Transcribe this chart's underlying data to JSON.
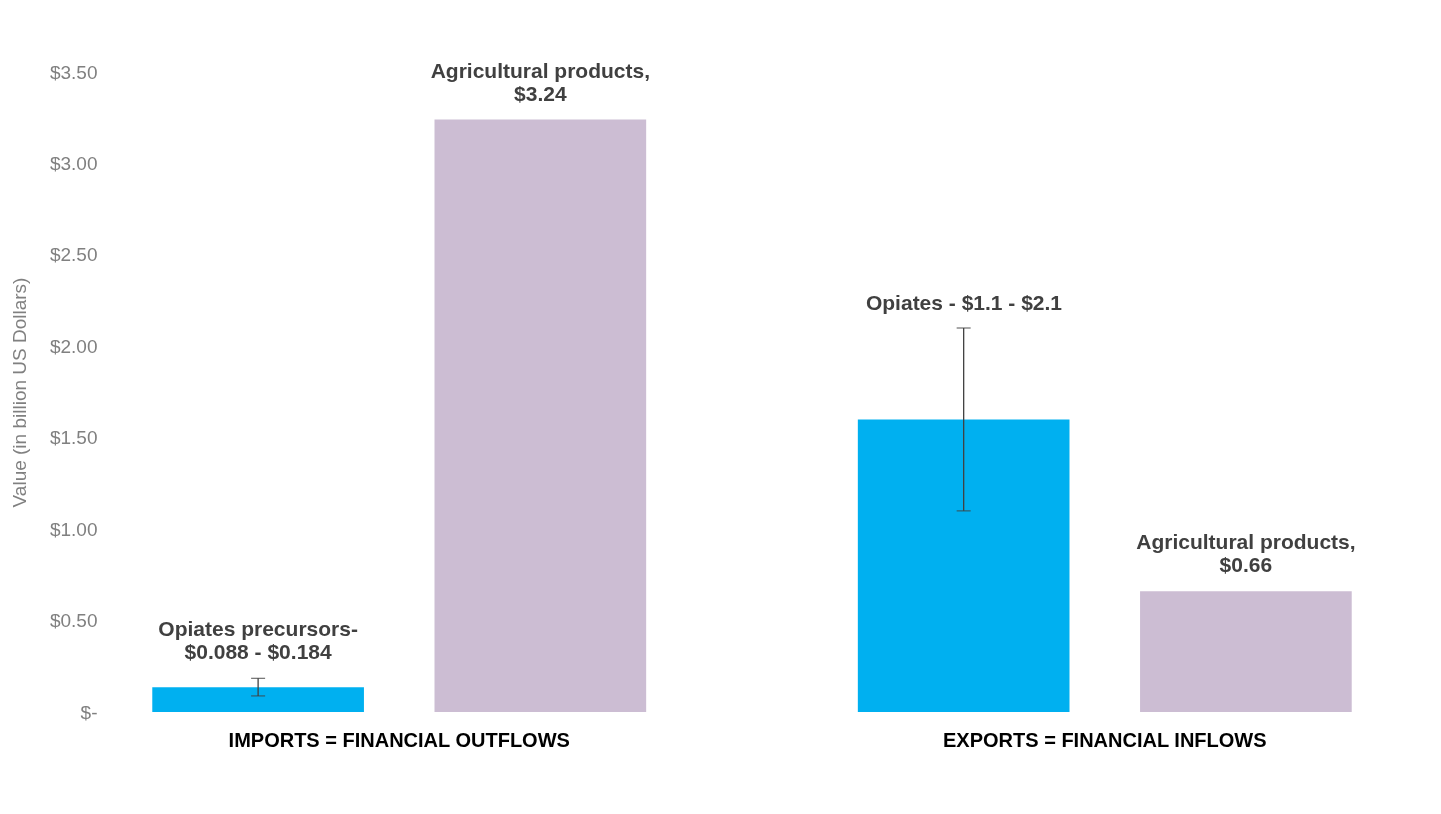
{
  "chart_data": {
    "type": "bar",
    "ylabel": "Value (in billion US Dollars)",
    "categories": [
      "IMPORTS = FINANCIAL OUTFLOWS",
      "EXPORTS = FINANCIAL INFLOWS"
    ],
    "series": [
      {
        "color": "#00b0f0",
        "values": [
          0.136,
          1.6
        ],
        "errors": [
          [
            0.088,
            0.184
          ],
          [
            1.1,
            2.1
          ]
        ],
        "value_labels": [
          "Opiates precursors-\n$0.088 -  $0.184",
          null
        ]
      },
      {
        "color": "#ccbdd3",
        "values": [
          3.24,
          0.66
        ],
        "value_labels": [
          "Agricultural products,\n$3.24",
          "Agricultural products,\n$0.66"
        ]
      }
    ],
    "ylim": [
      0,
      3.5
    ],
    "yticks": [
      {
        "value": 0,
        "label": "$-"
      },
      {
        "value": 0.5,
        "label": "$0.50"
      },
      {
        "value": 1,
        "label": "$1.00"
      },
      {
        "value": 1.5,
        "label": "$1.50"
      },
      {
        "value": 2,
        "label": "$2.00"
      },
      {
        "value": 2.5,
        "label": "$2.50"
      },
      {
        "value": 3,
        "label": "$3.00"
      },
      {
        "value": 3.5,
        "label": "$3.50"
      }
    ],
    "annotations": [
      "Opiates - $1.1 - $2.1"
    ],
    "grid": false,
    "legend": false
  }
}
